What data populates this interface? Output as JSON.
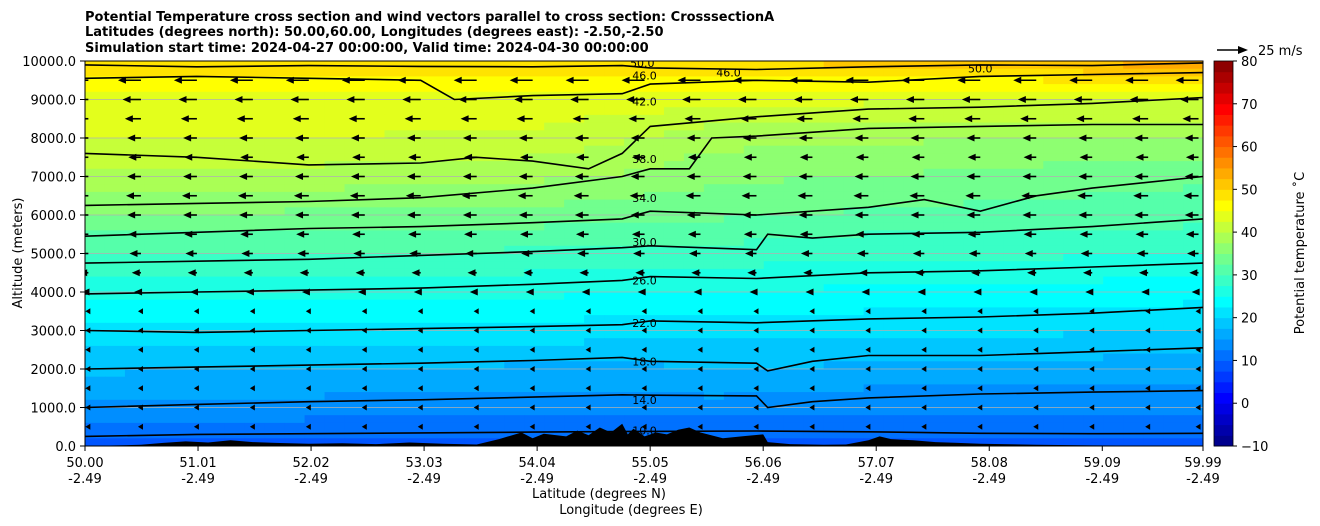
{
  "chart_data": {
    "type": "heatmap",
    "title_lines": [
      "Potential Temperature cross section and wind vectors parallel to cross section: CrosssectionA",
      "Latitudes (degrees north): 50.00,60.00, Longitudes (degrees east): -2.50,-2.50",
      "Simulation start time: 2024-04-27 00:00:00, Valid time: 2024-04-30 00:00:00"
    ],
    "xlabel": "Latitude (degrees N)",
    "xlabel2": "Longitude (degrees E)",
    "ylabel": "Altitude (meters)",
    "xlim": [
      50.0,
      59.99
    ],
    "ylim": [
      0,
      10000
    ],
    "x_ticks": [
      {
        "lat": "50.00",
        "lon": "-2.49",
        "value": 50.0
      },
      {
        "lat": "51.01",
        "lon": "-2.49",
        "value": 51.01
      },
      {
        "lat": "52.02",
        "lon": "-2.49",
        "value": 52.02
      },
      {
        "lat": "53.03",
        "lon": "-2.49",
        "value": 53.03
      },
      {
        "lat": "54.04",
        "lon": "-2.49",
        "value": 54.04
      },
      {
        "lat": "55.05",
        "lon": "-2.49",
        "value": 55.05
      },
      {
        "lat": "56.06",
        "lon": "-2.49",
        "value": 56.06
      },
      {
        "lat": "57.07",
        "lon": "-2.49",
        "value": 57.07
      },
      {
        "lat": "58.08",
        "lon": "-2.49",
        "value": 58.08
      },
      {
        "lat": "59.09",
        "lon": "-2.49",
        "value": 59.09
      },
      {
        "lat": "59.99",
        "lon": "-2.49",
        "value": 59.99
      }
    ],
    "y_ticks": [
      {
        "label": "0.0",
        "value": 0
      },
      {
        "label": "1000.0",
        "value": 1000
      },
      {
        "label": "2000.0",
        "value": 2000
      },
      {
        "label": "3000.0",
        "value": 3000
      },
      {
        "label": "4000.0",
        "value": 4000
      },
      {
        "label": "5000.0",
        "value": 5000
      },
      {
        "label": "6000.0",
        "value": 6000
      },
      {
        "label": "7000.0",
        "value": 7000
      },
      {
        "label": "8000.0",
        "value": 8000
      },
      {
        "label": "9000.0",
        "value": 9000
      },
      {
        "label": "10000.0",
        "value": 10000
      }
    ],
    "grid": true,
    "colorbar": {
      "label": "Potential temperature $^\\circ$C",
      "label_text": "Potential temperature ˚C",
      "min": -10,
      "max": 80,
      "step": 2.5,
      "ticks": [
        {
          "label": "−10",
          "value": -10
        },
        {
          "label": "0",
          "value": 0
        },
        {
          "label": "10",
          "value": 10
        },
        {
          "label": "20",
          "value": 20
        },
        {
          "label": "30",
          "value": 30
        },
        {
          "label": "40",
          "value": 40
        },
        {
          "label": "50",
          "value": 50
        },
        {
          "label": "60",
          "value": 60
        },
        {
          "label": "70",
          "value": 70
        },
        {
          "label": "80",
          "value": 80
        }
      ],
      "colormap": "jet"
    },
    "quiver_key": {
      "label": "25 m/s",
      "speed": 25
    },
    "contours": [
      {
        "level": 10.0,
        "label": "10.0",
        "points": [
          [
            50.0,
            250
          ],
          [
            51.0,
            300
          ],
          [
            52.0,
            320
          ],
          [
            53.0,
            340
          ],
          [
            54.0,
            360
          ],
          [
            55.0,
            380
          ],
          [
            56.0,
            390
          ],
          [
            57.0,
            370
          ],
          [
            58.0,
            330
          ],
          [
            59.0,
            320
          ],
          [
            59.99,
            330
          ]
        ]
      },
      {
        "level": 14.0,
        "label": "14.0",
        "points": [
          [
            50.0,
            1000
          ],
          [
            51.0,
            1080
          ],
          [
            52.0,
            1150
          ],
          [
            53.0,
            1200
          ],
          [
            54.0,
            1270
          ],
          [
            54.8,
            1330
          ],
          [
            55.05,
            1320
          ],
          [
            56.0,
            1300
          ],
          [
            56.1,
            1000
          ],
          [
            56.5,
            1150
          ],
          [
            57.0,
            1250
          ],
          [
            58.0,
            1350
          ],
          [
            59.0,
            1400
          ],
          [
            59.99,
            1440
          ]
        ]
      },
      {
        "level": 18.0,
        "label": "18.0",
        "points": [
          [
            50.0,
            2000
          ],
          [
            51.0,
            2050
          ],
          [
            52.0,
            2100
          ],
          [
            53.0,
            2150
          ],
          [
            54.0,
            2220
          ],
          [
            54.8,
            2300
          ],
          [
            55.05,
            2200
          ],
          [
            56.0,
            2150
          ],
          [
            56.1,
            1950
          ],
          [
            56.5,
            2200
          ],
          [
            57.0,
            2350
          ],
          [
            58.0,
            2350
          ],
          [
            59.0,
            2450
          ],
          [
            59.99,
            2550
          ]
        ]
      },
      {
        "level": 22.0,
        "label": "22.0",
        "points": [
          [
            50.0,
            3000
          ],
          [
            51.0,
            2950
          ],
          [
            52.0,
            3000
          ],
          [
            53.0,
            3050
          ],
          [
            54.0,
            3100
          ],
          [
            54.8,
            3150
          ],
          [
            55.05,
            3250
          ],
          [
            56.0,
            3200
          ],
          [
            57.0,
            3300
          ],
          [
            58.0,
            3350
          ],
          [
            59.0,
            3450
          ],
          [
            59.99,
            3600
          ]
        ]
      },
      {
        "level": 26.0,
        "label": "26.0",
        "points": [
          [
            50.0,
            3950
          ],
          [
            51.0,
            4000
          ],
          [
            52.0,
            4050
          ],
          [
            53.0,
            4100
          ],
          [
            54.0,
            4200
          ],
          [
            54.8,
            4300
          ],
          [
            55.05,
            4400
          ],
          [
            56.0,
            4350
          ],
          [
            57.0,
            4500
          ],
          [
            58.0,
            4550
          ],
          [
            59.0,
            4650
          ],
          [
            59.99,
            4750
          ]
        ]
      },
      {
        "level": 30.0,
        "label": "30.0",
        "points": [
          [
            50.0,
            4750
          ],
          [
            51.0,
            4800
          ],
          [
            52.0,
            4850
          ],
          [
            53.0,
            4950
          ],
          [
            54.0,
            5050
          ],
          [
            54.8,
            5150
          ],
          [
            55.05,
            5200
          ],
          [
            56.0,
            5100
          ],
          [
            56.1,
            5500
          ],
          [
            56.5,
            5400
          ],
          [
            57.0,
            5500
          ],
          [
            58.0,
            5550
          ],
          [
            59.0,
            5700
          ],
          [
            59.99,
            5900
          ]
        ]
      },
      {
        "level": 34.0,
        "label": "34.0",
        "points": [
          [
            50.0,
            5450
          ],
          [
            51.0,
            5550
          ],
          [
            52.0,
            5650
          ],
          [
            53.0,
            5700
          ],
          [
            54.0,
            5800
          ],
          [
            54.8,
            5900
          ],
          [
            55.05,
            6100
          ],
          [
            56.0,
            6000
          ],
          [
            57.0,
            6200
          ],
          [
            57.5,
            6400
          ],
          [
            58.0,
            6100
          ],
          [
            58.5,
            6500
          ],
          [
            59.0,
            6700
          ],
          [
            59.99,
            7000
          ]
        ]
      },
      {
        "level": 38.0,
        "label": "38.0",
        "points": [
          [
            50.0,
            6250
          ],
          [
            51.0,
            6300
          ],
          [
            52.0,
            6350
          ],
          [
            53.0,
            6450
          ],
          [
            54.0,
            6700
          ],
          [
            54.8,
            7000
          ],
          [
            55.05,
            7200
          ],
          [
            55.4,
            7200
          ],
          [
            55.6,
            8000
          ],
          [
            56.0,
            8050
          ],
          [
            57.0,
            8250
          ],
          [
            58.0,
            8300
          ],
          [
            59.0,
            8350
          ],
          [
            59.99,
            8350
          ]
        ]
      },
      {
        "level": 42.0,
        "label": "42.0",
        "points": [
          [
            50.0,
            7600
          ],
          [
            51.0,
            7500
          ],
          [
            52.0,
            7300
          ],
          [
            53.0,
            7350
          ],
          [
            53.5,
            7500
          ],
          [
            54.0,
            7400
          ],
          [
            54.5,
            7200
          ],
          [
            54.8,
            7600
          ],
          [
            55.05,
            8300
          ],
          [
            56.0,
            8550
          ],
          [
            57.0,
            8750
          ],
          [
            58.0,
            8800
          ],
          [
            59.0,
            8900
          ],
          [
            59.99,
            9050
          ]
        ]
      },
      {
        "level": 46.0,
        "label": "46.0",
        "points": [
          [
            50.0,
            9550
          ],
          [
            51.0,
            9600
          ],
          [
            52.0,
            9550
          ],
          [
            53.0,
            9500
          ],
          [
            53.3,
            9000
          ],
          [
            54.0,
            9100
          ],
          [
            54.8,
            9150
          ],
          [
            55.05,
            9400
          ],
          [
            56.0,
            9500
          ],
          [
            57.0,
            9450
          ],
          [
            58.0,
            9600
          ],
          [
            59.0,
            9650
          ],
          [
            59.99,
            9700
          ]
        ]
      },
      {
        "level": 50.0,
        "label": "50.0",
        "points": [
          [
            50.0,
            9900
          ],
          [
            51.0,
            9850
          ],
          [
            52.0,
            9880
          ],
          [
            53.0,
            9860
          ],
          [
            54.0,
            9850
          ],
          [
            54.8,
            9880
          ],
          [
            55.05,
            9820
          ],
          [
            56.0,
            9780
          ],
          [
            57.0,
            9850
          ],
          [
            58.0,
            9900
          ],
          [
            59.0,
            9880
          ],
          [
            59.99,
            9950
          ]
        ]
      }
    ],
    "contour_label_positions": [
      {
        "label": "50.0",
        "x": 54.98,
        "y": 9950
      },
      {
        "label": "46.0",
        "x": 55.0,
        "y": 9620
      },
      {
        "label": "46.0",
        "x": 55.75,
        "y": 9700
      },
      {
        "label": "50.0",
        "x": 58.0,
        "y": 9800
      },
      {
        "label": "42.0",
        "x": 55.0,
        "y": 8950
      },
      {
        "label": "38.0",
        "x": 55.0,
        "y": 7450
      },
      {
        "label": "34.0",
        "x": 55.0,
        "y": 6440
      },
      {
        "label": "30.0",
        "x": 55.0,
        "y": 5300
      },
      {
        "label": "26.0",
        "x": 55.0,
        "y": 4300
      },
      {
        "label": "22.0",
        "x": 55.0,
        "y": 3200
      },
      {
        "label": "18.0",
        "x": 55.0,
        "y": 2200
      },
      {
        "label": "14.0",
        "x": 55.0,
        "y": 1200
      },
      {
        "label": "10.0",
        "x": 55.0,
        "y": 400
      }
    ],
    "temperature_field": {
      "x": [
        50.0,
        52.0,
        54.0,
        55.05,
        55.6,
        57.0,
        58.5,
        59.99
      ],
      "y": [
        0,
        1000,
        2000,
        3000,
        4000,
        5000,
        6000,
        7000,
        8000,
        9000,
        10000
      ],
      "values": [
        [
          9,
          9,
          9,
          9,
          9,
          9,
          9,
          9
        ],
        [
          14,
          14,
          13.5,
          13.5,
          14,
          13,
          13,
          13
        ],
        [
          18,
          17.5,
          17,
          17,
          17.5,
          17,
          16.5,
          16
        ],
        [
          22,
          22,
          21.5,
          21,
          21,
          20.5,
          20.5,
          20
        ],
        [
          26,
          26,
          25.5,
          25,
          25,
          24.5,
          24,
          23.5
        ],
        [
          30,
          30,
          29.5,
          29,
          29,
          28,
          28,
          27.5
        ],
        [
          35,
          34.5,
          34,
          33,
          33,
          32,
          31.5,
          31
        ],
        [
          39.5,
          39,
          38,
          37,
          35.5,
          35,
          34,
          33
        ],
        [
          42.5,
          42.5,
          42,
          40,
          38.5,
          38,
          37.5,
          37
        ],
        [
          44,
          44,
          44,
          44,
          43,
          43,
          43,
          43
        ],
        [
          49.5,
          49,
          49,
          50,
          50,
          51,
          52,
          55
        ]
      ]
    },
    "terrain": [
      [
        50.0,
        0
      ],
      [
        50.5,
        30
      ],
      [
        50.7,
        80
      ],
      [
        50.9,
        120
      ],
      [
        51.1,
        90
      ],
      [
        51.3,
        150
      ],
      [
        51.5,
        100
      ],
      [
        51.7,
        80
      ],
      [
        52.0,
        60
      ],
      [
        52.3,
        70
      ],
      [
        52.6,
        50
      ],
      [
        52.9,
        90
      ],
      [
        53.2,
        60
      ],
      [
        53.5,
        40
      ],
      [
        53.7,
        180
      ],
      [
        53.9,
        350
      ],
      [
        54.0,
        200
      ],
      [
        54.1,
        320
      ],
      [
        54.3,
        250
      ],
      [
        54.4,
        400
      ],
      [
        54.5,
        280
      ],
      [
        54.6,
        480
      ],
      [
        54.7,
        350
      ],
      [
        54.8,
        580
      ],
      [
        54.85,
        300
      ],
      [
        54.9,
        450
      ],
      [
        55.0,
        250
      ],
      [
        55.1,
        350
      ],
      [
        55.2,
        300
      ],
      [
        55.3,
        420
      ],
      [
        55.4,
        480
      ],
      [
        55.5,
        350
      ],
      [
        55.7,
        200
      ],
      [
        55.9,
        260
      ],
      [
        56.06,
        300
      ],
      [
        56.1,
        100
      ],
      [
        56.3,
        50
      ],
      [
        56.6,
        30
      ],
      [
        56.8,
        40
      ],
      [
        57.0,
        150
      ],
      [
        57.1,
        250
      ],
      [
        57.2,
        180
      ],
      [
        57.4,
        150
      ],
      [
        57.6,
        100
      ],
      [
        57.8,
        80
      ],
      [
        58.0,
        60
      ],
      [
        58.5,
        30
      ],
      [
        59.0,
        15
      ],
      [
        59.99,
        0
      ]
    ],
    "wind_vectors": {
      "x": [
        50.03,
        50.5,
        51.0,
        51.5,
        52.0,
        52.5,
        53.0,
        53.5,
        54.0,
        54.5,
        55.0,
        55.5,
        56.0,
        56.5,
        57.0,
        57.5,
        58.0,
        58.5,
        59.0,
        59.5,
        59.95
      ],
      "y": [
        500,
        1000,
        1500,
        2000,
        2500,
        3000,
        3500,
        4000,
        4500,
        5000,
        5500,
        6000,
        6500,
        7000,
        7500,
        8000,
        8500,
        9000,
        9500
      ],
      "u_by_height": [
        -2,
        -2,
        -1.5,
        -1,
        -1,
        -1.5,
        -2,
        -3,
        -4,
        -5,
        -5.5,
        -6,
        -6.5,
        -6,
        -5.5,
        -6,
        -7,
        -8,
        -10
      ]
    }
  }
}
